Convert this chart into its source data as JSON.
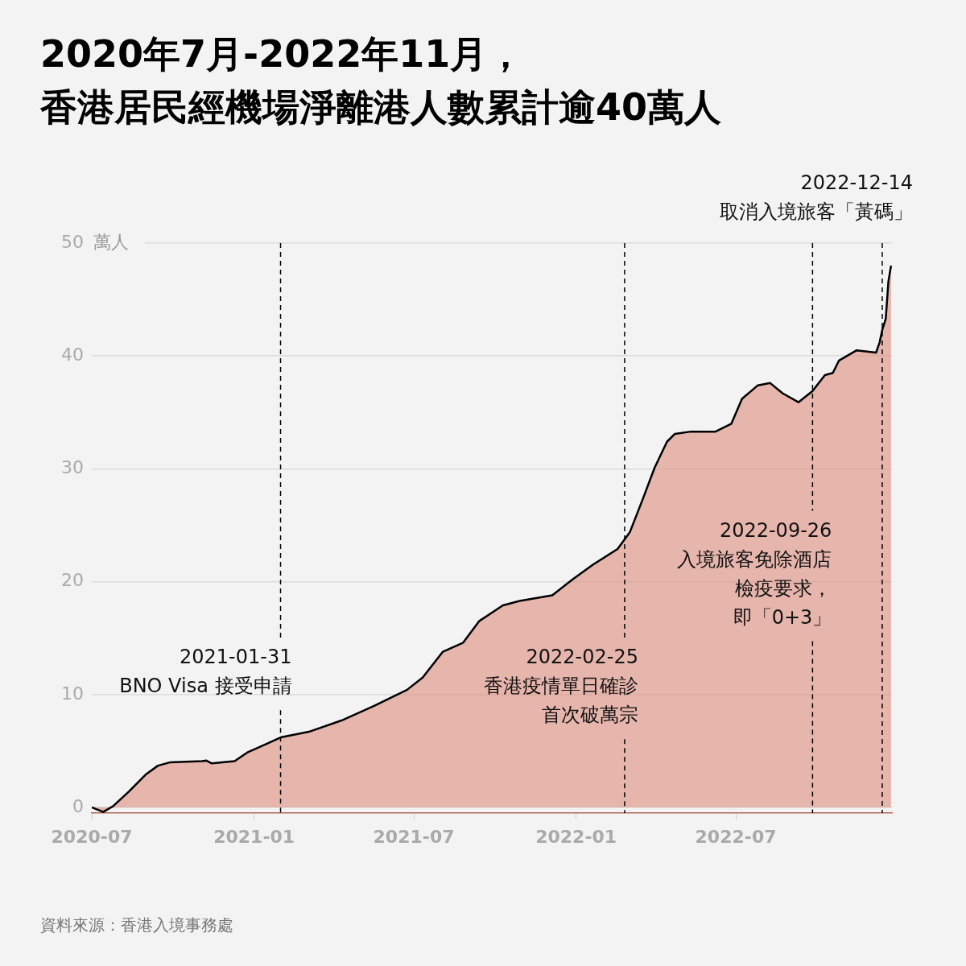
{
  "chart_data": {
    "type": "area",
    "title": "2020年7月-2022年11月，香港居民經機場淨離港人數累計逾40萬人",
    "ylabel": "萬人",
    "x": [
      "2020-07-01",
      "2020-07-14",
      "2020-07-25",
      "2020-08-12",
      "2020-08-31",
      "2020-09-14",
      "2020-09-28",
      "2020-11-03",
      "2020-11-08",
      "2020-11-14",
      "2020-12-10",
      "2020-12-25",
      "2021-01-17",
      "2021-01-31",
      "2021-03-04",
      "2021-04-10",
      "2021-05-17",
      "2021-06-23",
      "2021-07-11",
      "2021-08-03",
      "2021-08-26",
      "2021-09-13",
      "2021-10-10",
      "2021-10-29",
      "2021-12-05",
      "2021-12-28",
      "2022-01-20",
      "2022-02-17",
      "2022-03-03",
      "2022-03-17",
      "2022-03-31",
      "2022-04-14",
      "2022-04-23",
      "2022-05-11",
      "2022-06-08",
      "2022-06-26",
      "2022-07-08",
      "2022-07-26",
      "2022-08-09",
      "2022-08-23",
      "2022-09-10",
      "2022-09-26",
      "2022-10-10",
      "2022-10-19",
      "2022-10-26",
      "2022-11-06",
      "2022-11-15",
      "2022-12-07",
      "2022-12-11",
      "2022-12-14",
      "2022-12-18",
      "2022-12-21",
      "2022-12-24"
    ],
    "series": [
      {
        "color": "#000000",
        "values": [
          0,
          -0.4,
          0.1,
          1.4,
          2.9,
          3.7,
          4.0,
          4.1,
          4.15,
          3.9,
          4.1,
          4.9,
          5.7,
          6.2,
          6.7,
          7.7,
          9.0,
          10.4,
          11.5,
          13.8,
          14.6,
          16.5,
          17.9,
          18.3,
          18.8,
          20.2,
          21.5,
          22.9,
          24.4,
          27.2,
          30.1,
          32.4,
          33.1,
          33.3,
          33.3,
          34.0,
          36.2,
          37.4,
          37.6,
          36.7,
          35.9,
          36.9,
          38.3,
          38.5,
          39.6,
          40.1,
          40.5,
          40.3,
          41.2,
          42.3,
          43.3,
          46.6,
          48.0
        ]
      }
    ],
    "xlim": [
      "2020-07-01",
      "2022-12-25"
    ],
    "xticks": [
      "2020-07",
      "2021-01",
      "2021-07",
      "2022-01",
      "2022-07"
    ],
    "ylim": [
      -0.5,
      50
    ],
    "yticks": [
      0,
      10,
      20,
      30,
      40,
      50
    ],
    "grid": "y",
    "legend": false,
    "ref_lines": [
      {
        "axis": "x",
        "value": "2021-01-31",
        "label": "2021-01-31\nBNO Visa 接受申請",
        "line_style": "dashed"
      },
      {
        "axis": "x",
        "value": "2022-02-25",
        "label": "2022-02-25\n香港疫情單日確診首次破萬宗",
        "line_style": "dashed"
      },
      {
        "axis": "x",
        "value": "2022-09-26",
        "label": "2022-09-26\n入境旅客免除酒店檢疫要求，即「0+3」",
        "line_style": "dashed"
      },
      {
        "axis": "x",
        "value": "2022-12-14",
        "label": "2022-12-14\n取消入境旅客「黃碼」",
        "line_style": "dashed"
      }
    ],
    "annotations": [
      "資料來源：香港入境事務處"
    ]
  }
}
